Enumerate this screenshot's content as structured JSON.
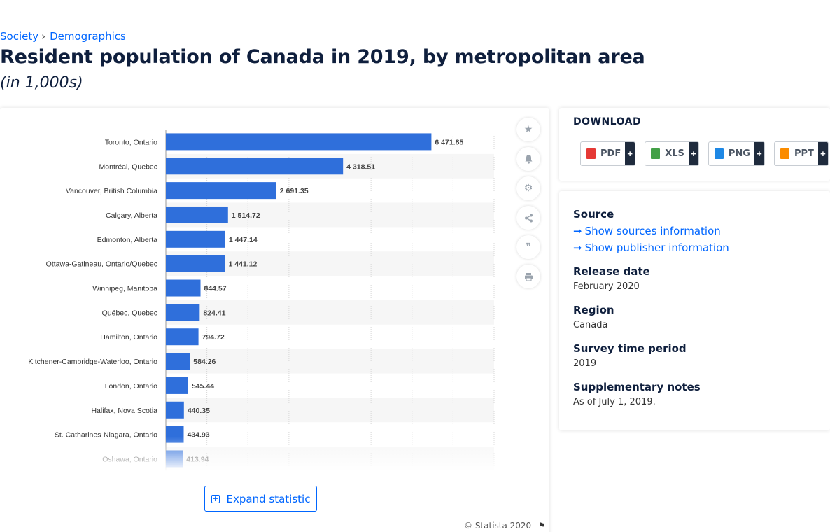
{
  "breadcrumb": {
    "items": [
      "Society",
      "Demographics"
    ],
    "separator": "›"
  },
  "title": "Resident population of Canada in 2019, by metropolitan area",
  "subtitle": "(in 1,000s)",
  "toolbar": {
    "icons": [
      "star-icon",
      "bell-icon",
      "gear-icon",
      "share-icon",
      "quote-icon",
      "print-icon"
    ]
  },
  "expand_label": "Expand statistic",
  "copyright": "© Statista 2020",
  "download": {
    "title": "DOWNLOAD",
    "formats": [
      {
        "label": "PDF",
        "color": "#e53935"
      },
      {
        "label": "XLS",
        "color": "#43a047"
      },
      {
        "label": "PNG",
        "color": "#1e88e5"
      },
      {
        "label": "PPT",
        "color": "#fb8c00"
      }
    ],
    "plus": "+"
  },
  "info": {
    "source_heading": "Source",
    "show_sources": "Show sources information",
    "show_publisher": "Show publisher information",
    "release_heading": "Release date",
    "release_value": "February 2020",
    "region_heading": "Region",
    "region_value": "Canada",
    "survey_heading": "Survey time period",
    "survey_value": "2019",
    "notes_heading": "Supplementary notes",
    "notes_value": "As of July 1, 2019."
  },
  "chart_data": {
    "type": "bar",
    "orientation": "horizontal",
    "categories": [
      "Toronto, Ontario",
      "Montréal, Quebec",
      "Vancouver, British Columbia",
      "Calgary, Alberta",
      "Edmonton, Alberta",
      "Ottawa-Gatineau, Ontario/Quebec",
      "Winnipeg, Manitoba",
      "Québec, Quebec",
      "Hamilton, Ontario",
      "Kitchener-Cambridge-Waterloo, Ontario",
      "London, Ontario",
      "Halifax, Nova Scotia",
      "St. Catharines-Niagara, Ontario",
      "Oshawa, Ontario"
    ],
    "values": [
      6471.85,
      4318.51,
      2691.35,
      1514.72,
      1447.14,
      1441.12,
      844.57,
      824.41,
      794.72,
      584.26,
      545.44,
      440.35,
      434.93,
      413.94
    ],
    "value_labels": [
      "6 471.85",
      "4 318.51",
      "2 691.35",
      "1 514.72",
      "1 447.14",
      "1 441.12",
      "844.57",
      "824.41",
      "794.72",
      "584.26",
      "545.44",
      "440.35",
      "434.93",
      "413.94"
    ],
    "xlim": [
      0,
      8000
    ],
    "grid": true,
    "bar_color": "#2f6fdb"
  }
}
